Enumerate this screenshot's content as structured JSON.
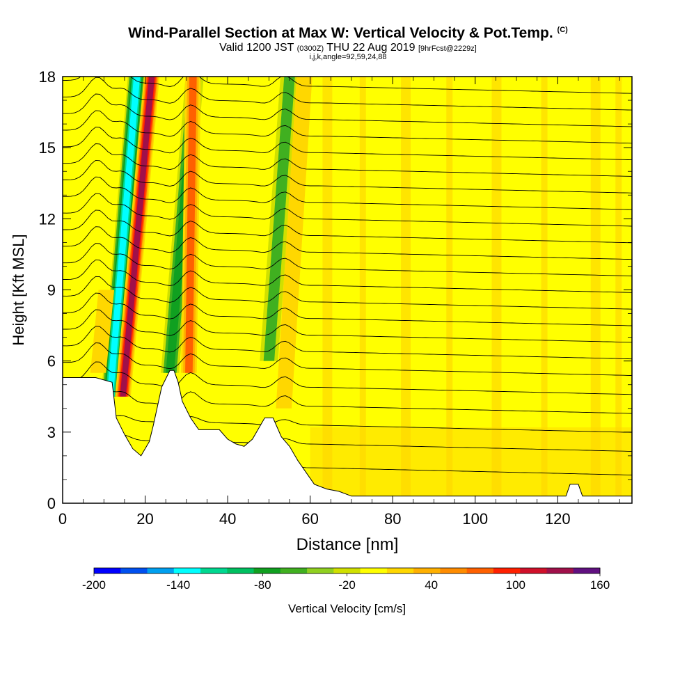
{
  "title": {
    "main": "Wind-Parallel Section at Max W: Vertical Velocity & Pot.Temp.",
    "copyright_mark": "(C)",
    "valid_prefix": "Valid 1200 JST",
    "valid_utc": "(0300Z)",
    "valid_date": "THU 22 Aug 2019",
    "forecast_tag": "[9hrFcst@2229z]",
    "indices": "i,j,k,angle=92,59,24,88"
  },
  "chart_data": {
    "type": "heatmap",
    "xlabel": "Distance [nm]",
    "ylabel": "Height [Kft MSL]",
    "xlim": [
      0,
      138
    ],
    "ylim": [
      0,
      18
    ],
    "x_ticks": [
      0,
      20,
      40,
      60,
      80,
      100,
      120
    ],
    "y_ticks": [
      0,
      3,
      6,
      9,
      12,
      15,
      18
    ],
    "background_level_cm_s": 0,
    "updraft_bands": [
      {
        "x_base": 13,
        "x_top": 20,
        "y_from": 4.5,
        "y_to": 18,
        "peak_cm_s": 160
      },
      {
        "x_base": 29,
        "x_top": 30,
        "y_from": 5.5,
        "y_to": 18,
        "peak_cm_s": 100
      },
      {
        "x_base": 52,
        "x_top": 57,
        "y_from": 4,
        "y_to": 18,
        "peak_cm_s": 40
      },
      {
        "x_base": 7,
        "x_top": 9,
        "y_from": 5.5,
        "y_to": 9,
        "peak_cm_s": 40
      }
    ],
    "downdraft_bands": [
      {
        "x_base": 11.5,
        "x_top": 18,
        "y_from": 4.5,
        "y_to": 18,
        "min_cm_s": -140
      },
      {
        "x_base": 26,
        "x_top": 32,
        "y_from": 5.5,
        "y_to": 18,
        "min_cm_s": -80
      },
      {
        "x_base": 50,
        "x_top": 55,
        "y_from": 6,
        "y_to": 18,
        "min_cm_s": -60
      }
    ],
    "theta_contour_heights_kft": [
      1.5,
      2.5,
      3.3,
      4.1,
      4.9,
      5.7,
      6.4,
      7.1,
      7.8,
      8.5,
      9.2,
      9.9,
      10.6,
      11.3,
      12.0,
      12.7,
      13.4,
      14.1,
      14.8,
      15.5,
      16.2,
      16.9,
      17.6
    ],
    "terrain_kft": [
      [
        0,
        5.3
      ],
      [
        3,
        5.3
      ],
      [
        8,
        5.3
      ],
      [
        12,
        5.1
      ],
      [
        13,
        3.6
      ],
      [
        15,
        2.9
      ],
      [
        17,
        2.3
      ],
      [
        19,
        2.0
      ],
      [
        21,
        2.6
      ],
      [
        22,
        3.3
      ],
      [
        24,
        4.9
      ],
      [
        26,
        5.6
      ],
      [
        27,
        5.6
      ],
      [
        28,
        5.1
      ],
      [
        29,
        4.3
      ],
      [
        31,
        3.6
      ],
      [
        33,
        3.1
      ],
      [
        38,
        3.1
      ],
      [
        40,
        2.7
      ],
      [
        42,
        2.5
      ],
      [
        44,
        2.4
      ],
      [
        46,
        2.7
      ],
      [
        47,
        3.0
      ],
      [
        49,
        3.6
      ],
      [
        51,
        3.6
      ],
      [
        53,
        2.8
      ],
      [
        55,
        2.4
      ],
      [
        57,
        1.8
      ],
      [
        59,
        1.3
      ],
      [
        61,
        0.8
      ],
      [
        64,
        0.6
      ],
      [
        67,
        0.5
      ],
      [
        70,
        0.3
      ],
      [
        122,
        0.3
      ],
      [
        123,
        0.8
      ],
      [
        125,
        0.8
      ],
      [
        126,
        0.3
      ],
      [
        138,
        0.3
      ]
    ],
    "colorbar": {
      "label": "Vertical Velocity [cm/s]",
      "min": -200,
      "max": 160,
      "step": 20,
      "tick_labels": [
        "-200",
        "-140",
        "-80",
        "-20",
        "40",
        "100",
        "160"
      ],
      "colors": [
        "#0000ff",
        "#0050f0",
        "#00a0f0",
        "#00ffff",
        "#00d890",
        "#00c060",
        "#10a020",
        "#40b020",
        "#90d020",
        "#d0e000",
        "#ffff00",
        "#ffd700",
        "#ffb000",
        "#ff8c00",
        "#ff6000",
        "#ff2000",
        "#d0102a",
        "#a0104a",
        "#601080"
      ]
    }
  }
}
